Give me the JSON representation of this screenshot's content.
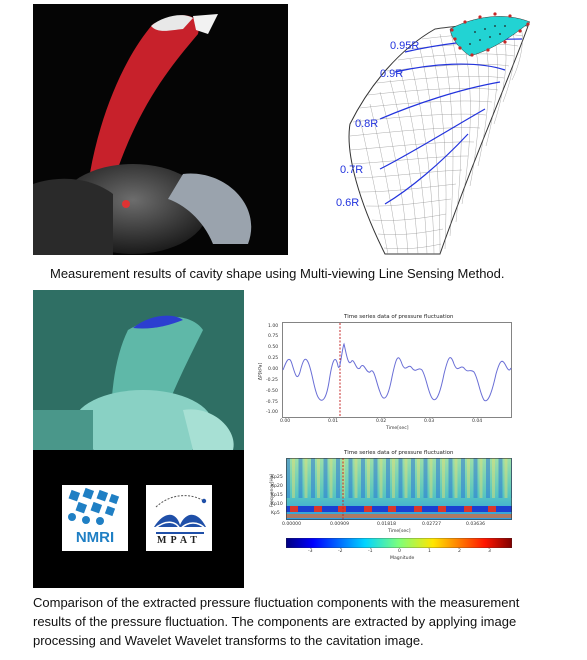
{
  "top": {
    "radius_labels": [
      "0.95R",
      "0.9R",
      "0.8R",
      "0.7R",
      "0.6R"
    ],
    "caption": "Measurement results of cavity shape using Multi-viewing Line Sensing Method."
  },
  "logos": {
    "nmri": "NMRI",
    "mpat": "MPAT"
  },
  "time_plot": {
    "title": "Time series data of pressure fluctuation",
    "ylabel": "ΔP[kPa]",
    "xlabel": "Time[sec]",
    "yticks": [
      "1.00",
      "0.75",
      "0.50",
      "0.25",
      "0.00",
      "-0.25",
      "-0.50",
      "-0.75",
      "-1.00"
    ],
    "xticks": [
      "0.00",
      "0.01",
      "0.02",
      "0.03",
      "0.04"
    ]
  },
  "wavelet_plot": {
    "title": "Time series data of pressure fluctuation",
    "ylabel": "Frequency[Hz]",
    "xlabel": "Time[sec]",
    "yticks": [
      "Kp25",
      "Kp20",
      "Kp15",
      "Kp10",
      "Kp5"
    ],
    "xticks": [
      "0.00000",
      "0.00909",
      "0.01818",
      "0.02727",
      "0.03636"
    ],
    "colorbar_ticks": [
      "-3",
      "-2",
      "-1",
      "0",
      "1",
      "2",
      "3"
    ],
    "colorbar_label": "Magnitude"
  },
  "bottom_caption": [
    "Comparison of the extracted pressure fluctuation components with the measurement",
    "results of the pressure fluctuation. The components are extracted by applying image",
    "processing and Wavelet Wavelet transforms to the cavitation image."
  ],
  "colors": {
    "curve": "#6a6fd6",
    "marker": "#c62828",
    "grid_blue": "#2233dd",
    "cavity": "#22d3d3"
  }
}
